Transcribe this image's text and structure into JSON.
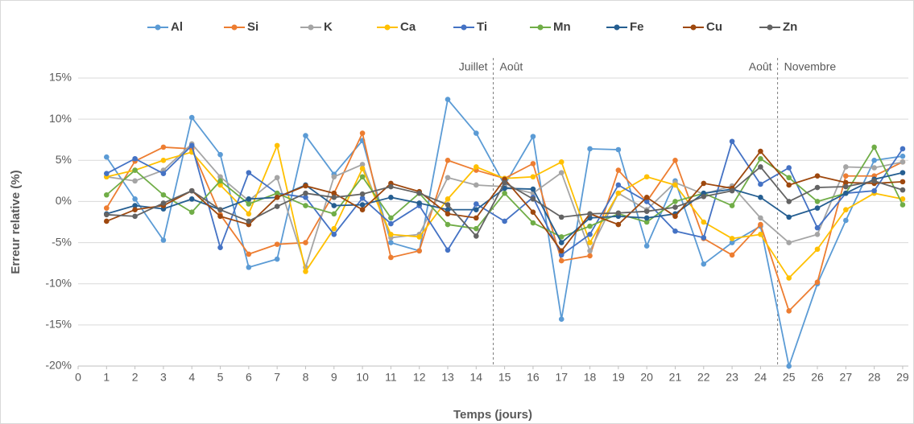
{
  "chart_data": {
    "type": "line",
    "x_label": "Temps (jours)",
    "y_label": "Erreur relative (%)",
    "xlim": [
      0,
      29.2
    ],
    "xticks": [
      0,
      1,
      2,
      3,
      4,
      5,
      6,
      7,
      8,
      9,
      10,
      11,
      12,
      13,
      14,
      15,
      16,
      17,
      18,
      19,
      20,
      21,
      22,
      23,
      24,
      25,
      26,
      27,
      28,
      29
    ],
    "ylim": [
      -20,
      15
    ],
    "yticks": [
      {
        "value": -20,
        "label": "-20%"
      },
      {
        "value": -15,
        "label": "-15%"
      },
      {
        "value": -10,
        "label": "-10%"
      },
      {
        "value": -5,
        "label": "-5%"
      },
      {
        "value": 0,
        "label": "0%"
      },
      {
        "value": 5,
        "label": "5%"
      },
      {
        "value": 10,
        "label": "10%"
      },
      {
        "value": 15,
        "label": "15%"
      }
    ],
    "grid": true,
    "legend": "top",
    "dividers": [
      {
        "x": 14.6,
        "left": "Juillet",
        "right": "Août"
      },
      {
        "x": 24.6,
        "left": "Août",
        "right": "Novembre"
      }
    ],
    "x": [
      1,
      2,
      3,
      4,
      5,
      6,
      7,
      8,
      9,
      10,
      11,
      12,
      13,
      14,
      15,
      16,
      17,
      18,
      19,
      20,
      21,
      22,
      23,
      24,
      25,
      26,
      27,
      28,
      29
    ],
    "series": [
      {
        "name": "Al",
        "color": "#5b9bd5",
        "values": [
          5.4,
          0.3,
          -4.7,
          10.2,
          5.7,
          -8,
          -7,
          8,
          3.3,
          7.4,
          -5,
          -6,
          12.4,
          8.3,
          2,
          7.9,
          -14.3,
          6.4,
          6.3,
          -5.4,
          2.5,
          -7.6,
          -5,
          -3,
          -20,
          -10,
          -2.3,
          5,
          5.5
        ]
      },
      {
        "name": "Si",
        "color": "#ed7d31",
        "values": [
          -0.8,
          4.9,
          6.6,
          6.4,
          -1.6,
          -6.4,
          -5.2,
          -5,
          1,
          8.3,
          -6.8,
          -6,
          5,
          3.8,
          2.8,
          4.6,
          -7.2,
          -6.6,
          3.8,
          0,
          5,
          -4.5,
          -6.5,
          -2.8,
          -13.3,
          -9.8,
          3.1,
          3.1,
          4.8
        ]
      },
      {
        "name": "K",
        "color": "#a5a5a5",
        "values": [
          3,
          2.5,
          3.8,
          7,
          3,
          0.1,
          2.9,
          -8,
          3,
          4.5,
          -4.4,
          -4,
          2.9,
          2,
          1.8,
          1,
          3.5,
          -6,
          1,
          -1,
          2.3,
          0.9,
          1.9,
          -2,
          -5,
          -4,
          4.2,
          4.1,
          4.8
        ]
      },
      {
        "name": "Ca",
        "color": "#ffc000",
        "values": [
          3,
          3.8,
          5,
          6,
          2,
          -1.5,
          6.8,
          -8.5,
          -3.3,
          4,
          -4,
          -4.3,
          0.3,
          4.2,
          2.8,
          3,
          4.8,
          -5,
          1,
          3,
          2,
          -2.5,
          -4.5,
          -4,
          -9.3,
          -5.8,
          -1,
          1,
          0.3
        ]
      },
      {
        "name": "Ti",
        "color": "#4472c4",
        "values": [
          3.4,
          5.2,
          3.4,
          6.8,
          -5.6,
          3.5,
          1,
          0.5,
          -4,
          0.4,
          -2.7,
          -0.5,
          -5.9,
          -0.3,
          -2.4,
          0.5,
          -6.5,
          -4,
          2,
          0,
          -3.6,
          -4.4,
          7.3,
          2.1,
          4.1,
          -3.2,
          1,
          1.3,
          6.4
        ]
      },
      {
        "name": "Mn",
        "color": "#70ad47",
        "values": [
          0.8,
          3.8,
          0.8,
          -1.3,
          2.5,
          -0.3,
          1,
          -0.5,
          -1.5,
          3,
          -2,
          1,
          -2.8,
          -3.3,
          1,
          -2.6,
          -4.3,
          -3,
          -1.5,
          -2.5,
          0,
          1,
          -0.5,
          5.2,
          2.9,
          0,
          1,
          6.6,
          -0.4
        ]
      },
      {
        "name": "Fe",
        "color": "#255e91",
        "values": [
          -1.5,
          -0.5,
          -0.9,
          0.3,
          -1,
          0.3,
          0.5,
          2,
          -0.5,
          -0.4,
          0.5,
          -0.2,
          -1,
          -1,
          1.6,
          1.5,
          -5,
          -2,
          -1.8,
          -2,
          -1.5,
          1,
          1.5,
          0.5,
          -1.9,
          -0.8,
          1,
          2.7,
          3.5
        ]
      },
      {
        "name": "Cu",
        "color": "#9e480e",
        "values": [
          -2.4,
          -1,
          -0.5,
          1.3,
          -1.8,
          -2.8,
          0.5,
          1.9,
          1,
          -1,
          2.2,
          1.2,
          -1.5,
          -2,
          2.7,
          -1.3,
          -6,
          -1.5,
          -2.8,
          0.5,
          -1.8,
          2.2,
          1.6,
          6.1,
          2,
          3.1,
          2.3,
          2.2,
          2.4
        ]
      },
      {
        "name": "Zn",
        "color": "#636363",
        "values": [
          -1.6,
          -1.8,
          -0.2,
          1.3,
          -1,
          -2.4,
          -0.6,
          1,
          0.5,
          0.9,
          1.8,
          1,
          -0.4,
          -4.2,
          2.3,
          0.3,
          -1.9,
          -1.5,
          -1.4,
          -1.2,
          -0.7,
          0.6,
          1.3,
          4.2,
          0,
          1.7,
          1.8,
          2.5,
          1.4
        ]
      }
    ]
  }
}
